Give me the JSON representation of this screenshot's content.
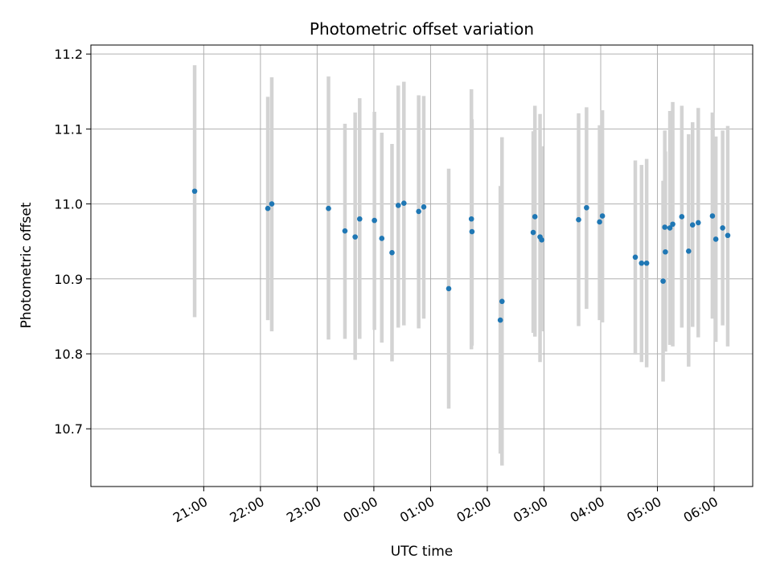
{
  "chart_data": {
    "type": "scatter",
    "title": "Photometric offset variation",
    "xlabel": "UTC time",
    "ylabel": "Photometric offset",
    "x_unit": "UTC time (hours after 00:00; negative = previous evening)",
    "xlim": [
      -4.99,
      6.68
    ],
    "ylim": [
      10.623,
      11.212
    ],
    "x_ticks": [
      -3,
      -2,
      -1,
      0,
      1,
      2,
      3,
      4,
      5,
      6
    ],
    "x_tick_labels": [
      "21:00",
      "22:00",
      "23:00",
      "00:00",
      "01:00",
      "02:00",
      "03:00",
      "04:00",
      "05:00",
      "06:00"
    ],
    "y_ticks": [
      10.7,
      10.8,
      10.9,
      11.0,
      11.1,
      11.2
    ],
    "y_tick_labels": [
      "10.7",
      "10.8",
      "10.9",
      "11.0",
      "11.1",
      "11.2"
    ],
    "grid": true,
    "colors": {
      "points": "#1f77b4",
      "errorbars": "#d3d3d3",
      "grid": "#b0b0b0"
    },
    "points": [
      {
        "x": -3.16,
        "y": 11.017,
        "lo": 10.849,
        "hi": 11.185
      },
      {
        "x": -1.87,
        "y": 10.994,
        "lo": 10.845,
        "hi": 11.143
      },
      {
        "x": -1.8,
        "y": 11.0,
        "lo": 10.83,
        "hi": 11.169
      },
      {
        "x": -0.8,
        "y": 10.994,
        "lo": 10.819,
        "hi": 11.17
      },
      {
        "x": -0.51,
        "y": 10.964,
        "lo": 10.82,
        "hi": 11.107
      },
      {
        "x": -0.33,
        "y": 10.956,
        "lo": 10.792,
        "hi": 11.122
      },
      {
        "x": -0.25,
        "y": 10.98,
        "lo": 10.82,
        "hi": 11.141
      },
      {
        "x": 0.01,
        "y": 10.978,
        "lo": 10.832,
        "hi": 11.123
      },
      {
        "x": 0.14,
        "y": 10.954,
        "lo": 10.815,
        "hi": 11.095
      },
      {
        "x": 0.32,
        "y": 10.935,
        "lo": 10.79,
        "hi": 11.08
      },
      {
        "x": 0.43,
        "y": 10.998,
        "lo": 10.835,
        "hi": 11.158
      },
      {
        "x": 0.53,
        "y": 11.001,
        "lo": 10.838,
        "hi": 11.163
      },
      {
        "x": 0.79,
        "y": 10.99,
        "lo": 10.834,
        "hi": 11.145
      },
      {
        "x": 0.88,
        "y": 10.996,
        "lo": 10.847,
        "hi": 11.144
      },
      {
        "x": 1.32,
        "y": 10.887,
        "lo": 10.727,
        "hi": 11.047
      },
      {
        "x": 1.72,
        "y": 10.98,
        "lo": 10.806,
        "hi": 11.153
      },
      {
        "x": 1.73,
        "y": 10.963,
        "lo": 10.811,
        "hi": 11.113
      },
      {
        "x": 2.23,
        "y": 10.845,
        "lo": 10.667,
        "hi": 11.024
      },
      {
        "x": 2.26,
        "y": 10.87,
        "lo": 10.651,
        "hi": 11.089
      },
      {
        "x": 2.81,
        "y": 10.962,
        "lo": 10.828,
        "hi": 11.097
      },
      {
        "x": 2.84,
        "y": 10.983,
        "lo": 10.823,
        "hi": 11.131
      },
      {
        "x": 2.93,
        "y": 10.956,
        "lo": 10.789,
        "hi": 11.12
      },
      {
        "x": 2.96,
        "y": 10.952,
        "lo": 10.83,
        "hi": 11.077
      },
      {
        "x": 3.61,
        "y": 10.979,
        "lo": 10.837,
        "hi": 11.121
      },
      {
        "x": 3.75,
        "y": 10.995,
        "lo": 10.86,
        "hi": 11.129
      },
      {
        "x": 3.98,
        "y": 10.976,
        "lo": 10.845,
        "hi": 11.105
      },
      {
        "x": 4.03,
        "y": 10.984,
        "lo": 10.842,
        "hi": 11.125
      },
      {
        "x": 4.61,
        "y": 10.929,
        "lo": 10.799,
        "hi": 11.058
      },
      {
        "x": 4.72,
        "y": 10.921,
        "lo": 10.789,
        "hi": 11.052
      },
      {
        "x": 4.81,
        "y": 10.921,
        "lo": 10.782,
        "hi": 11.06
      },
      {
        "x": 5.1,
        "y": 10.897,
        "lo": 10.763,
        "hi": 11.031
      },
      {
        "x": 5.13,
        "y": 10.969,
        "lo": 10.84,
        "hi": 11.098
      },
      {
        "x": 5.14,
        "y": 10.936,
        "lo": 10.803,
        "hi": 11.07
      },
      {
        "x": 5.22,
        "y": 10.968,
        "lo": 10.812,
        "hi": 11.124
      },
      {
        "x": 5.27,
        "y": 10.973,
        "lo": 10.81,
        "hi": 11.136
      },
      {
        "x": 5.43,
        "y": 10.983,
        "lo": 10.835,
        "hi": 11.131
      },
      {
        "x": 5.55,
        "y": 10.937,
        "lo": 10.783,
        "hi": 11.093
      },
      {
        "x": 5.62,
        "y": 10.972,
        "lo": 10.836,
        "hi": 11.109
      },
      {
        "x": 5.72,
        "y": 10.975,
        "lo": 10.822,
        "hi": 11.128
      },
      {
        "x": 5.97,
        "y": 10.984,
        "lo": 10.847,
        "hi": 11.122
      },
      {
        "x": 6.03,
        "y": 10.953,
        "lo": 10.816,
        "hi": 11.09
      },
      {
        "x": 6.15,
        "y": 10.968,
        "lo": 10.838,
        "hi": 11.098
      },
      {
        "x": 6.24,
        "y": 10.958,
        "lo": 10.81,
        "hi": 11.104
      }
    ]
  }
}
